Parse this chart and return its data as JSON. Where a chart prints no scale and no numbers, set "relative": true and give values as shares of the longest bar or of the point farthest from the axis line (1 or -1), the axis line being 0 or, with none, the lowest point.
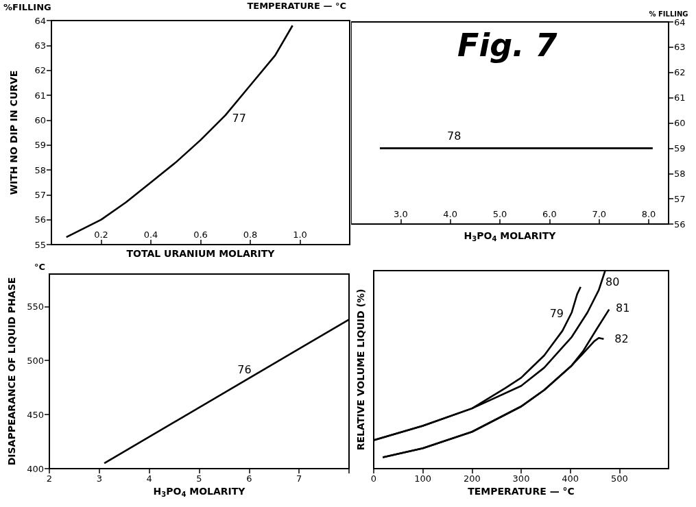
{
  "chart_data": [
    {
      "type": "line",
      "ylabel": "WITH NO DIP IN CURVE",
      "xlabel": "TOTAL URANIUM MOLARITY",
      "xlim": [
        0,
        1.2
      ],
      "xticks": [
        0.2,
        0.4,
        0.6,
        0.8,
        {
          "value": 1,
          "label": "1.0"
        }
      ],
      "ylim": [
        55,
        64
      ],
      "yticks": [
        55,
        56,
        57,
        58,
        59,
        60,
        61,
        62,
        63,
        64
      ],
      "annotations": [
        "%FILLING",
        "TEMPERATURE — °C",
        {
          "text": "77",
          "x": 0.7,
          "y": 60.2
        }
      ],
      "series": [
        {
          "color": "#000000",
          "x": [
            0.06,
            0.2,
            0.3,
            0.4,
            0.5,
            0.6,
            0.7,
            0.8,
            0.9,
            0.97
          ],
          "values": [
            55.3,
            56.0,
            56.7,
            57.5,
            58.3,
            59.2,
            60.2,
            61.4,
            62.6,
            63.8
          ]
        }
      ]
    },
    {
      "type": "line",
      "title": "Fig. 7",
      "y2label": "% FILLING",
      "xlabel": "H$_{3}$PO$_{4}$ MOLARITY",
      "xlim": [
        2,
        8.4
      ],
      "xticks": [
        {
          "value": 3,
          "label": "3.0"
        },
        {
          "value": 4,
          "label": "4.0"
        },
        {
          "value": 5,
          "label": "5.0"
        },
        {
          "value": 6,
          "label": "6.0"
        },
        {
          "value": 7,
          "label": "7.0"
        },
        {
          "value": 8,
          "label": "8.0"
        }
      ],
      "y2lim": [
        56,
        64
      ],
      "y2ticks": [
        56,
        57,
        58,
        59,
        60,
        61,
        62,
        63,
        64
      ],
      "annotations": [
        "78"
      ],
      "series": [
        {
          "color": "#000000",
          "axis": "y2",
          "x": [
            2.58,
            8.08
          ],
          "values": [
            59,
            59
          ]
        }
      ]
    },
    {
      "type": "line",
      "ylabel": "DISAPPEARANCE OF LIQUID PHASE",
      "xlabel": "H$_{3}$PO$_{4}$ MOLARITY",
      "xlim": [
        2,
        8
      ],
      "xticks": [
        2,
        3,
        4,
        5,
        6,
        7,
        {
          "value": 8,
          "label": null
        }
      ],
      "ylim": [
        400,
        580
      ],
      "yticks": [
        400,
        450,
        500,
        550
      ],
      "annotations": [
        "°C",
        {
          "text": "76",
          "x": 5.85,
          "y": 480
        }
      ],
      "series": [
        {
          "color": "#000000",
          "x": [
            3.1,
            8.0
          ],
          "values": [
            405,
            538
          ]
        }
      ]
    },
    {
      "type": "line",
      "relative": true,
      "ylabel": "RELATIVE VOLUME LIQUID (%)",
      "xlabel": "TEMPERATURE — °C",
      "xlim": [
        0,
        600
      ],
      "xticks": [
        0,
        100,
        200,
        300,
        400,
        500
      ],
      "annotations": [
        {
          "text": "79",
          "x": 403,
          "y": 0.789
        },
        {
          "text": "80",
          "x": 458,
          "y": 0.902
        },
        {
          "text": "81",
          "x": 479,
          "y": 0.804
        },
        {
          "text": "82",
          "x": 468,
          "y": 0.655
        }
      ],
      "series": [
        {
          "color": "#000000",
          "x": [
            0,
            100,
            200,
            268,
            300,
            347,
            384,
            403,
            414,
            421
          ],
          "values": [
            0.144,
            0.216,
            0.304,
            0.407,
            0.459,
            0.572,
            0.696,
            0.789,
            0.881,
            0.918
          ]
        },
        {
          "color": "#000000",
          "x": [
            0,
            100,
            200,
            300,
            347,
            403,
            435,
            458,
            471
          ],
          "values": [
            0.144,
            0.216,
            0.304,
            0.418,
            0.51,
            0.665,
            0.789,
            0.902,
            1.0
          ]
        },
        {
          "color": "#000000",
          "x": [
            18.5,
            100,
            200,
            300,
            347,
            403,
            426,
            454,
            479
          ],
          "values": [
            0.057,
            0.103,
            0.186,
            0.314,
            0.397,
            0.521,
            0.593,
            0.706,
            0.804
          ]
        },
        {
          "color": "#000000",
          "x": [
            18.5,
            100,
            200,
            300,
            347,
            403,
            426,
            449,
            458,
            468
          ],
          "values": [
            0.057,
            0.103,
            0.186,
            0.314,
            0.397,
            0.521,
            0.582,
            0.644,
            0.66,
            0.655
          ]
        }
      ]
    }
  ]
}
